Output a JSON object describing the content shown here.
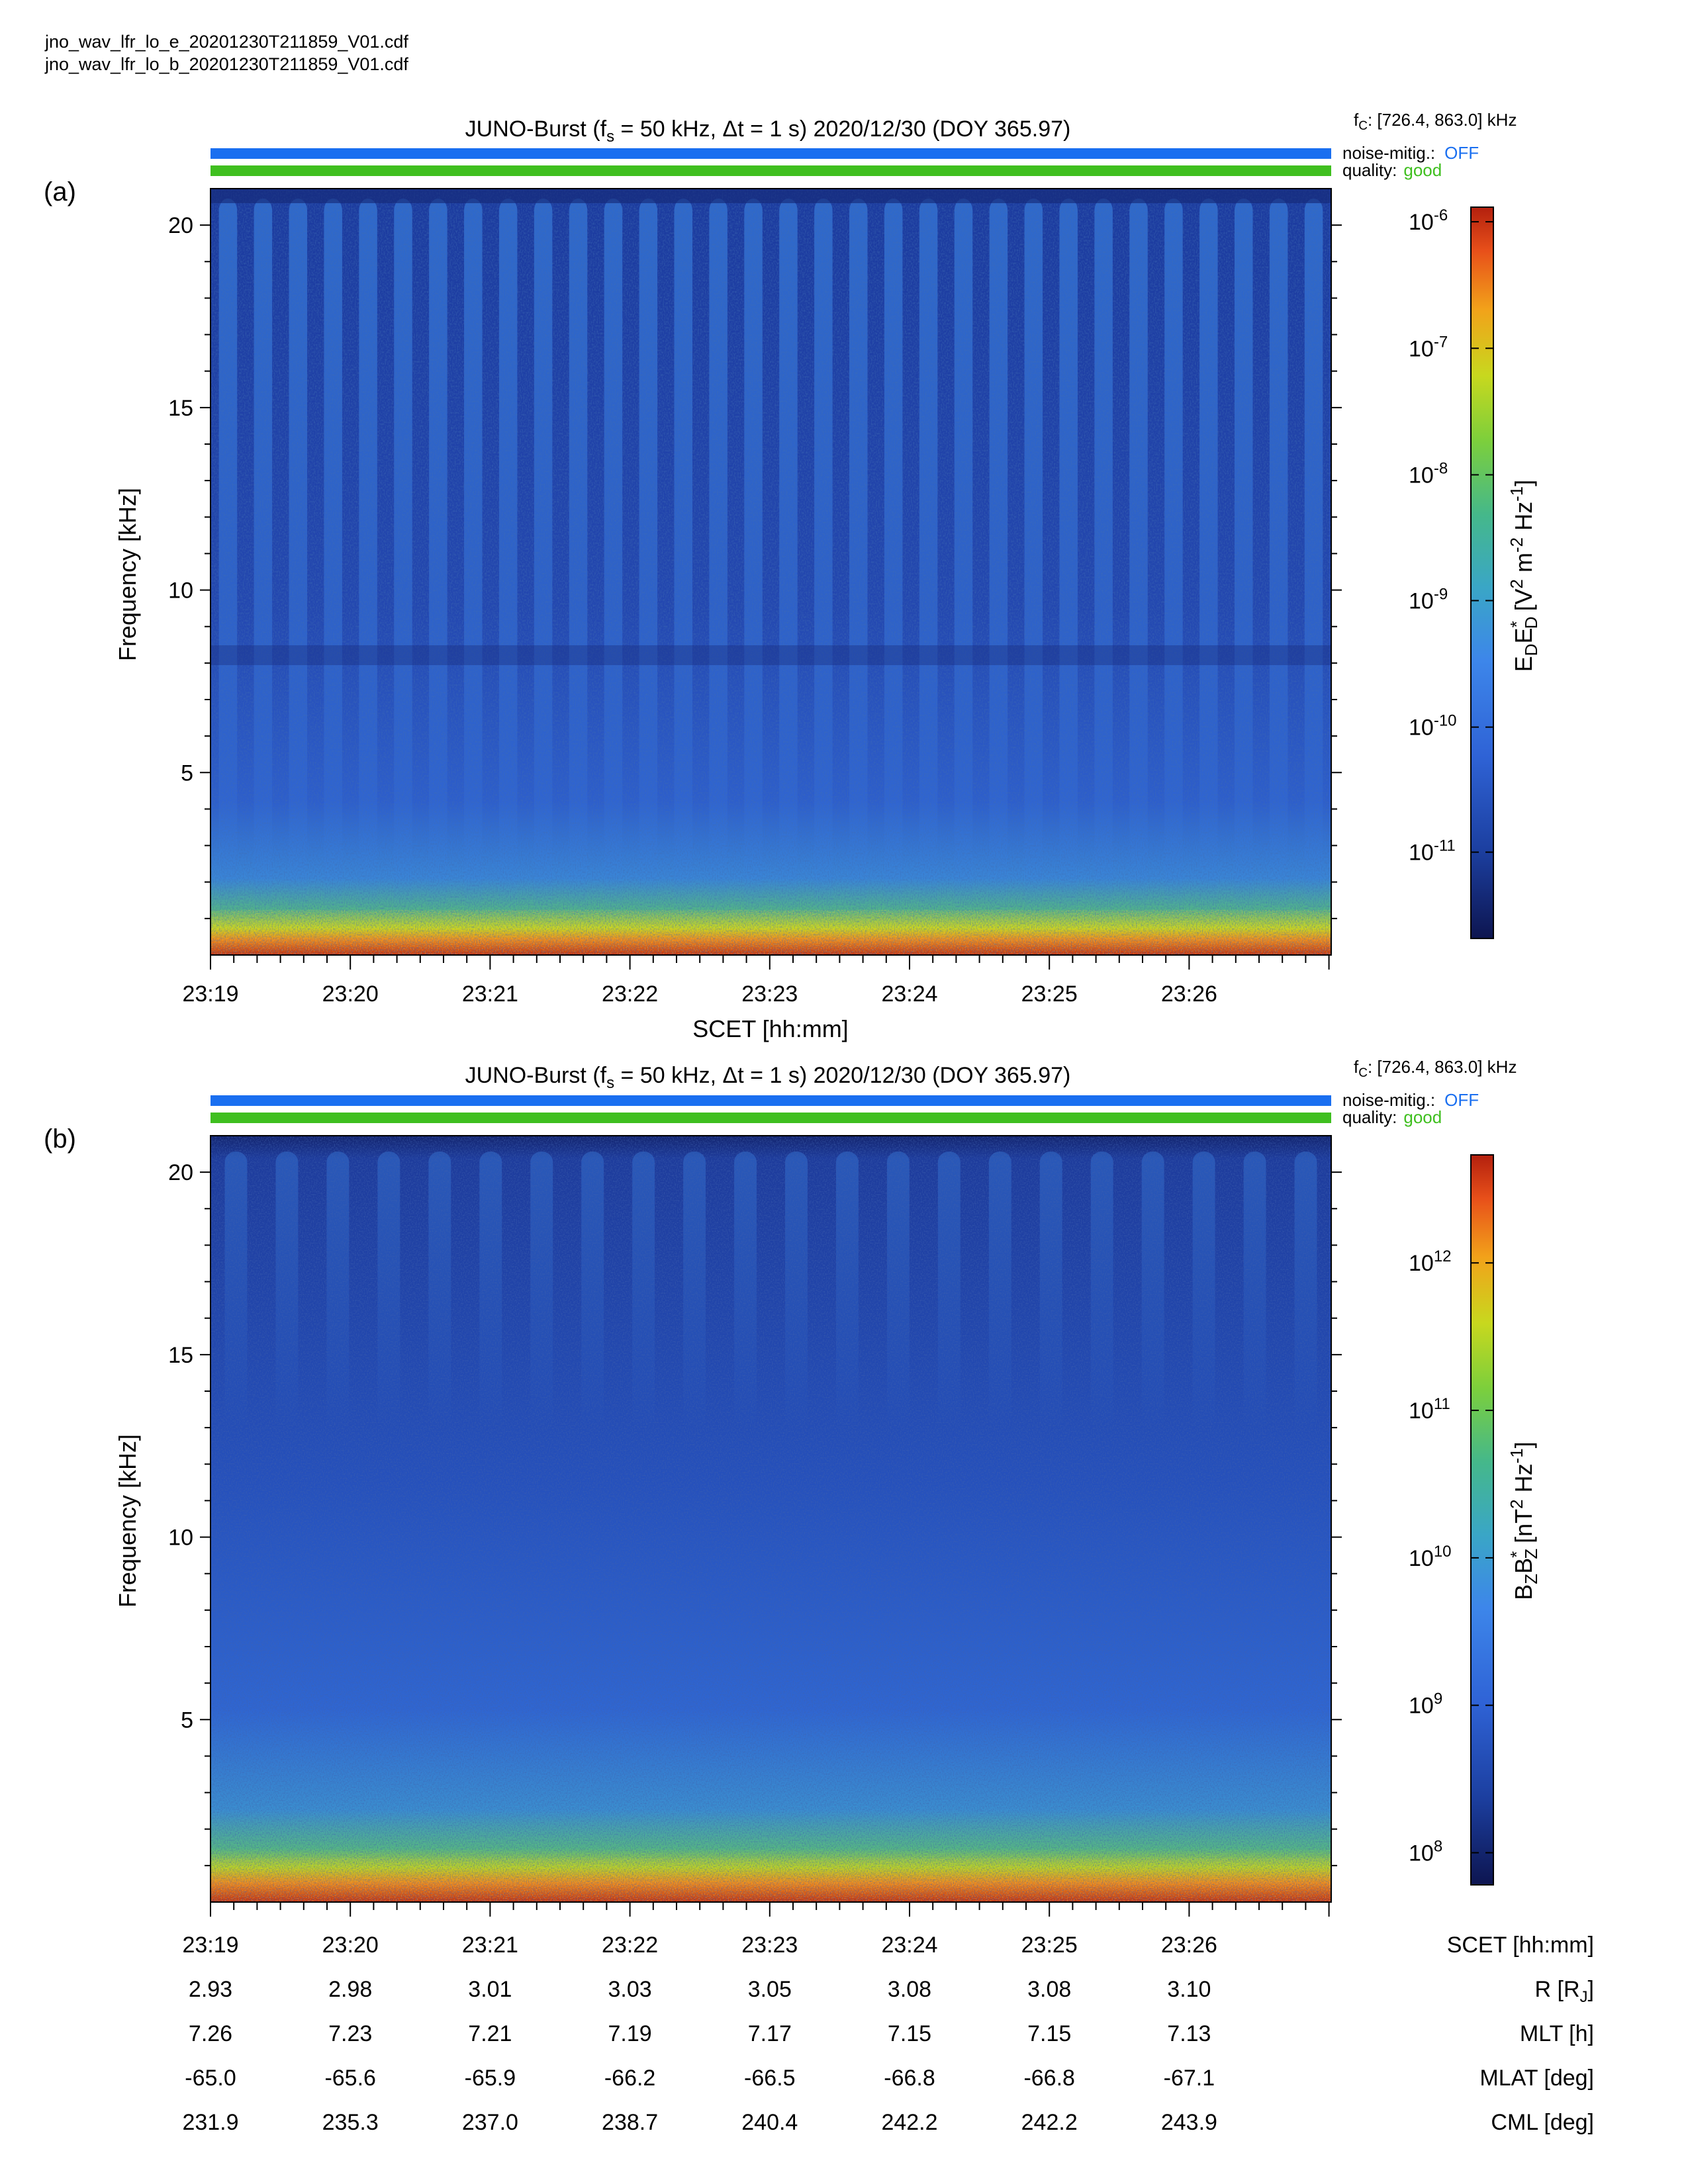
{
  "files": [
    "jno_wav_lfr_lo_e_20201230T211859_V01.cdf",
    "jno_wav_lfr_lo_b_20201230T211859_V01.cdf"
  ],
  "colors": {
    "noise_bar": "#1a6ff0",
    "quality_bar": "#3fbf1f",
    "noise_text": "#1a6ff0",
    "quality_text": "#3fbf1f",
    "colormap": [
      "#0d1550",
      "#1c3fa0",
      "#2f63d6",
      "#3d86ea",
      "#3aa6c6",
      "#45b88a",
      "#7ccf3c",
      "#c8d81e",
      "#f2a21a",
      "#e8501a",
      "#b3200e"
    ]
  },
  "panels": [
    {
      "label": "(a)",
      "title": "JUNO-Burst (f",
      "title_sub": "s",
      "title_rest": " = 50 kHz, Δt = 1 s)  2020/12/30 (DOY 365.97)",
      "fc_prefix": "f",
      "fc_sub": "C",
      "fc_value": ": [726.4, 863.0] kHz",
      "noise_label": "noise-mitig.:",
      "noise_value": "OFF",
      "quality_label": "quality:",
      "quality_value": "good",
      "ylabel": "Frequency [kHz]",
      "xlabel": "SCET [hh:mm]",
      "colorbar_label": "E",
      "colorbar_label_full": "E_D E*_D [V^2 m^-2 Hz^-1]",
      "colorbar_ticks": [
        "10",
        "10",
        "10",
        "10",
        "10",
        "10"
      ],
      "colorbar_exponents": [
        "-6",
        "-7",
        "-8",
        "-9",
        "-10",
        "-11"
      ]
    },
    {
      "label": "(b)",
      "title": "JUNO-Burst (f",
      "title_sub": "s",
      "title_rest": " = 50 kHz, Δt = 1 s)  2020/12/30 (DOY 365.97)",
      "fc_prefix": "f",
      "fc_sub": "C",
      "fc_value": ": [726.4, 863.0] kHz",
      "noise_label": "noise-mitig.:",
      "noise_value": "OFF",
      "quality_label": "quality:",
      "quality_value": "good",
      "ylabel": "Frequency [kHz]",
      "colorbar_label_full": "B_Z B*_Z [nT^2 Hz^-1]",
      "colorbar_ticks": [
        "10",
        "10",
        "10",
        "10",
        "10"
      ],
      "colorbar_exponents": [
        "12",
        "11",
        "10",
        "9",
        "8"
      ]
    }
  ],
  "ephemeris": {
    "rows": [
      {
        "label": "SCET [hh:mm]",
        "values": [
          "23:19",
          "23:20",
          "23:21",
          "23:22",
          "23:23",
          "23:24",
          "23:25",
          "23:26"
        ]
      },
      {
        "label": "R [R",
        "label_sub": "J",
        "label_end": "]",
        "values": [
          "2.93",
          "2.98",
          "3.01",
          "3.03",
          "3.05",
          "3.08",
          "3.08",
          "3.10"
        ]
      },
      {
        "label": "MLT [h]",
        "values": [
          "7.26",
          "7.23",
          "7.21",
          "7.19",
          "7.17",
          "7.15",
          "7.15",
          "7.13"
        ]
      },
      {
        "label": "MLAT [deg]",
        "values": [
          "-65.0",
          "-65.6",
          "-65.9",
          "-66.2",
          "-66.5",
          "-66.8",
          "-66.8",
          "-67.1"
        ]
      },
      {
        "label": "CML [deg]",
        "values": [
          "231.9",
          "235.3",
          "237.0",
          "238.7",
          "240.4",
          "242.2",
          "242.2",
          "243.9"
        ]
      }
    ]
  },
  "chart_data": [
    {
      "type": "heatmap",
      "title": "JUNO-Burst (fs = 50 kHz, Δt = 1 s) 2020/12/30 (DOY 365.97)",
      "xlabel": "SCET [hh:mm]",
      "ylabel": "Frequency [kHz]",
      "x_ticks": [
        "23:19",
        "23:20",
        "23:21",
        "23:22",
        "23:23",
        "23:24",
        "23:25",
        "23:26"
      ],
      "y_ticks": [
        5,
        10,
        15,
        20
      ],
      "ylim": [
        0,
        21
      ],
      "colorbar": {
        "label": "E_D E*_D [V^2 m^-2 Hz^-1]",
        "scale": "log",
        "ticks": [
          "1e-6",
          "1e-7",
          "1e-8",
          "1e-9",
          "1e-10",
          "1e-11"
        ]
      },
      "features": {
        "periodic_columns_count": 32,
        "intense_band_below_kHz": 1
      }
    },
    {
      "type": "heatmap",
      "title": "JUNO-Burst (fs = 50 kHz, Δt = 1 s) 2020/12/30 (DOY 365.97)",
      "xlabel": "SCET [hh:mm]",
      "ylabel": "Frequency [kHz]",
      "x_ticks": [
        "23:19",
        "23:20",
        "23:21",
        "23:22",
        "23:23",
        "23:24",
        "23:25",
        "23:26"
      ],
      "y_ticks": [
        5,
        10,
        15,
        20
      ],
      "ylim": [
        0,
        21
      ],
      "colorbar": {
        "label": "B_Z B*_Z [nT^2 Hz^-1]",
        "scale": "log",
        "ticks": [
          "1e12",
          "1e11",
          "1e10",
          "1e9",
          "1e8"
        ]
      },
      "features": {
        "intense_band_below_kHz": 1
      }
    }
  ]
}
